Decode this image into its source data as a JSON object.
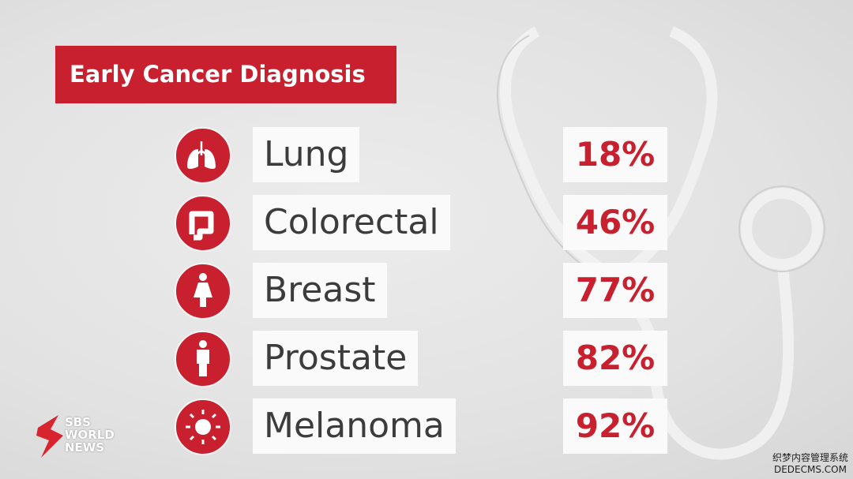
{
  "header": {
    "title": "Early Cancer Diagnosis"
  },
  "rows": [
    {
      "label": "Lung",
      "value": "18%"
    },
    {
      "label": "Colorectal",
      "value": "46%"
    },
    {
      "label": "Breast",
      "value": "77%"
    },
    {
      "label": "Prostate",
      "value": "82%"
    },
    {
      "label": "Melanoma",
      "value": "92%"
    }
  ],
  "logo": {
    "line1": "SBS",
    "line2": "WORLD",
    "line3": "NEWS"
  },
  "watermark": {
    "line1": "织梦内容管理系统",
    "line2": "DEDECMS.COM"
  }
}
